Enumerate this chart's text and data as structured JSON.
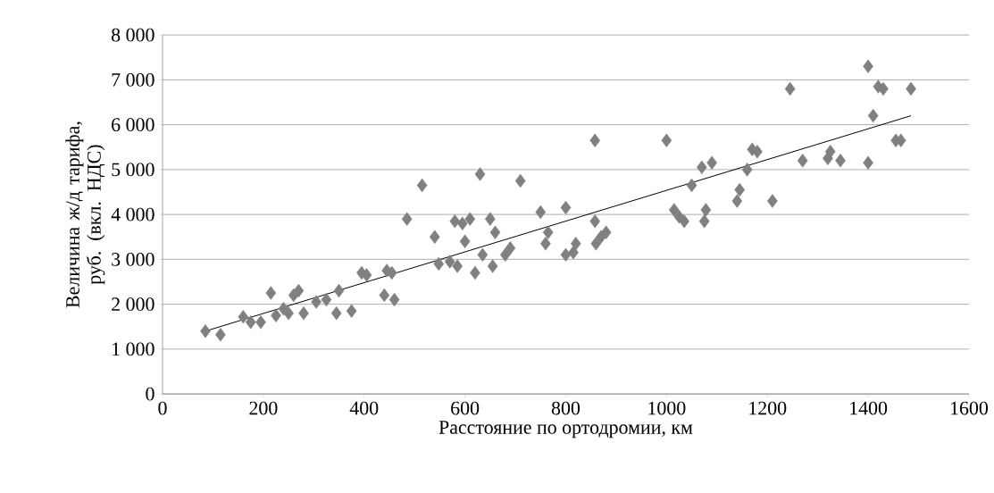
{
  "chart_data": {
    "type": "scatter",
    "xlabel": "Расстояние по ортодромии, км",
    "ylabel": "Величина ж/д тарифа, руб. (вкл. НДС)",
    "xlim": [
      0,
      1600
    ],
    "ylim": [
      0,
      8000
    ],
    "xticks": [
      0,
      200,
      400,
      600,
      800,
      1000,
      1200,
      1400,
      1600
    ],
    "yticks": [
      {
        "value": 0,
        "label": "0"
      },
      {
        "value": 1000,
        "label": "1 000"
      },
      {
        "value": 2000,
        "label": "2 000"
      },
      {
        "value": 3000,
        "label": "3 000"
      },
      {
        "value": 4000,
        "label": "4 000"
      },
      {
        "value": 5000,
        "label": "5 000"
      },
      {
        "value": 6000,
        "label": "6 000"
      },
      {
        "value": 7000,
        "label": "7 000"
      },
      {
        "value": 8000,
        "label": "8 000"
      }
    ],
    "grid": "y",
    "series": [
      {
        "color": "#808080",
        "marker": "diamond",
        "x": [
          85,
          115,
          160,
          175,
          195,
          215,
          225,
          240,
          250,
          260,
          270,
          280,
          305,
          325,
          345,
          350,
          375,
          395,
          405,
          440,
          445,
          455,
          460,
          485,
          515,
          540,
          548,
          570,
          580,
          585,
          595,
          600,
          610,
          620,
          630,
          635,
          650,
          655,
          660,
          680,
          690,
          710,
          750,
          760,
          765,
          800,
          800,
          815,
          820,
          858,
          858,
          860,
          870,
          880,
          1000,
          1015,
          1025,
          1035,
          1050,
          1070,
          1075,
          1078,
          1090,
          1140,
          1145,
          1160,
          1170,
          1180,
          1210,
          1245,
          1270,
          1320,
          1325,
          1345,
          1400,
          1400,
          1410,
          1420,
          1430,
          1455,
          1465,
          1485
        ],
        "values": [
          1400,
          1320,
          1720,
          1600,
          1600,
          2250,
          1750,
          1900,
          1800,
          2200,
          2300,
          1800,
          2050,
          2100,
          1800,
          2300,
          1850,
          2700,
          2650,
          2200,
          2750,
          2700,
          2100,
          3900,
          4650,
          3500,
          2900,
          2950,
          3850,
          2850,
          3800,
          3400,
          3900,
          2700,
          4900,
          3100,
          3900,
          2850,
          3600,
          3100,
          3250,
          4750,
          4050,
          3350,
          3600,
          4150,
          3100,
          3150,
          3350,
          5650,
          3850,
          3350,
          3500,
          3600,
          5650,
          4100,
          3950,
          3850,
          4650,
          5050,
          3850,
          4100,
          5150,
          4300,
          4550,
          5000,
          5450,
          5400,
          4300,
          6800,
          5200,
          5250,
          5400,
          5200,
          5150,
          7300,
          6200,
          6850,
          6800,
          5650,
          5650,
          6800
        ]
      },
      {
        "type": "line",
        "color": "#000000",
        "marker": "none",
        "x": [
          85,
          1485
        ],
        "values": [
          1400,
          6200
        ]
      }
    ]
  }
}
